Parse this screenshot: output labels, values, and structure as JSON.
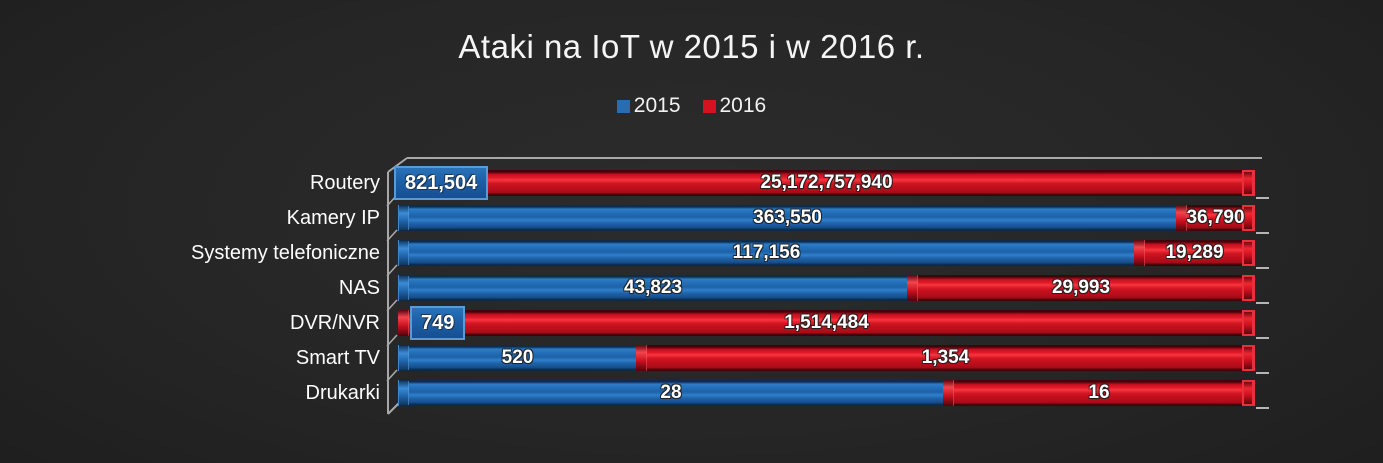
{
  "title": "Ataki na IoT w 2015 i w 2016 r.",
  "legend": {
    "items": [
      {
        "label": "2015",
        "color": "#2a6cb0"
      },
      {
        "label": "2016",
        "color": "#d41220"
      }
    ]
  },
  "colors": {
    "background": "#262626",
    "series_2015": "#1d62a8",
    "series_2016": "#cc1020",
    "frame_line": "#a8a8a8",
    "text": "#fdfdfd"
  },
  "chart_data": {
    "type": "bar",
    "variant": "horizontal-100pct-stacked-3d",
    "title": "Ataki na IoT w 2015 i w 2016 r.",
    "legend_position": "top-center",
    "grid": false,
    "categories": [
      "Routery",
      "Kamery IP",
      "Systemy telefoniczne",
      "NAS",
      "DVR/NVR",
      "Smart TV",
      "Drukarki"
    ],
    "series": [
      {
        "name": "2015",
        "color": "#1d62a8",
        "values": [
          821504,
          363550,
          117156,
          43823,
          749,
          520,
          28
        ]
      },
      {
        "name": "2016",
        "color": "#cc1020",
        "values": [
          25172757940,
          36790,
          19289,
          29993,
          1514484,
          1354,
          16
        ]
      }
    ],
    "value_labels_2015": [
      "821,504",
      "363,550",
      "117,156",
      "43,823",
      "749",
      "520",
      "28"
    ],
    "value_labels_2016": [
      "25,172,757,940",
      "36,790",
      "19,289",
      "29,993",
      "1,514,484",
      "1,354",
      "16"
    ],
    "label_style_2015": [
      "box",
      "inside",
      "inside",
      "inside",
      "box",
      "inside",
      "inside"
    ]
  }
}
